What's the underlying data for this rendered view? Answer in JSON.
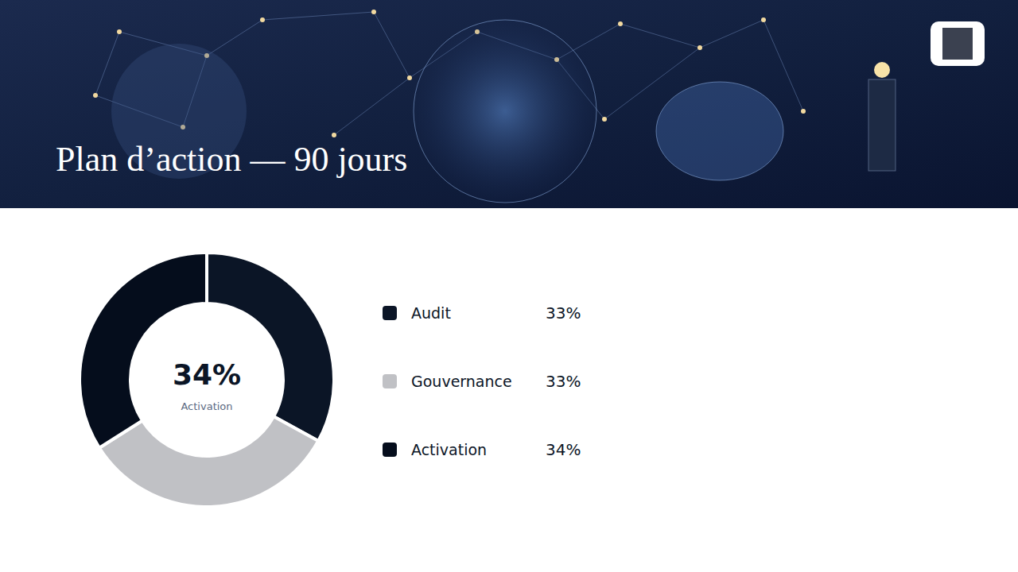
{
  "chart_data": {
    "type": "donut",
    "title": "Plan d’action — 90 jours",
    "categories": [
      "Audit",
      "Gouvernance",
      "Activation"
    ],
    "values": [
      33,
      33,
      34
    ],
    "value_labels": [
      "33%",
      "33%",
      "34%"
    ],
    "colors": [
      "#0b1526",
      "#c0c1c5",
      "#050d1c"
    ]
  }
}
